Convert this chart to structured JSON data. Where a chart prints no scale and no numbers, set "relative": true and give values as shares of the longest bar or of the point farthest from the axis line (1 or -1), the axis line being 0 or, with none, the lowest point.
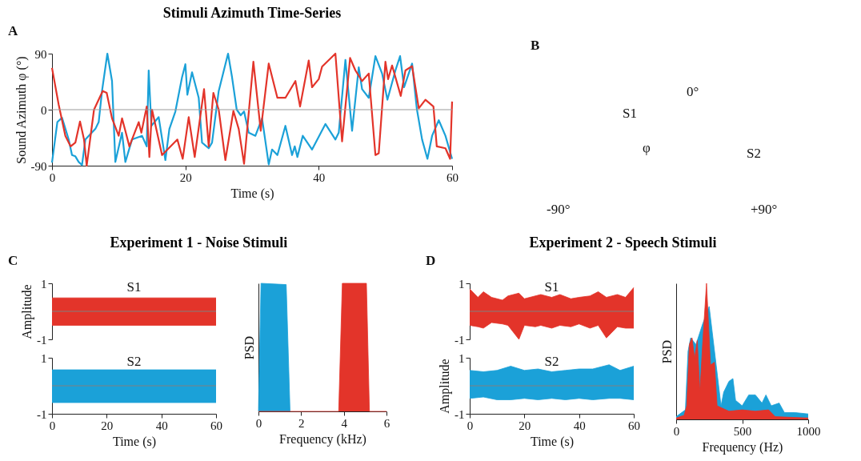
{
  "chart_data": [
    {
      "type": "line",
      "title": "Stimuli Azimuth Time-Series",
      "xlabel": "Time (s)",
      "ylabel": "Sound Azimuth φ (°)",
      "annotations": [
        "A"
      ],
      "xlim": [
        0,
        60
      ],
      "ylim": [
        -90,
        90
      ],
      "xticks": [
        0,
        20,
        40,
        60
      ],
      "yticks": [
        -90,
        0,
        90
      ],
      "ref_lines": [
        {
          "axis": "y",
          "value": 0,
          "color": "#999999"
        }
      ],
      "series": [
        {
          "color": "#1ba1d8",
          "x": [
            0,
            0.8,
            1.5,
            2.5,
            3,
            3.5,
            4,
            4.5,
            5,
            6.5,
            7,
            7.5,
            8.3,
            9,
            9.5,
            10.5,
            11,
            12,
            13.5,
            14.2,
            14.5,
            14.9,
            16,
            17,
            17.6,
            18.5,
            19.5,
            20,
            20.3,
            21,
            22,
            22.5,
            23.5,
            24,
            25,
            26.4,
            27,
            27.7,
            28.3,
            28.8,
            29.5,
            30.5,
            31.5,
            32.5,
            33,
            33.8,
            35,
            36,
            36.4,
            36.8,
            37.6,
            39,
            41,
            42.5,
            43,
            44,
            45,
            46,
            46.5,
            47.5,
            48.5,
            49.5,
            50.3,
            51.5,
            52.2,
            52.8,
            53.3,
            54,
            54.7,
            55.5,
            56.3,
            57,
            58,
            59,
            60
          ],
          "values": [
            -85,
            -20,
            -13,
            -48,
            -73,
            -75,
            -84,
            -89,
            -48,
            -31,
            -20,
            30,
            90,
            46,
            -84,
            -37,
            -84,
            -48,
            -42,
            -59,
            63,
            -26,
            -12,
            -81,
            -31,
            -3,
            52,
            73,
            24,
            60,
            19,
            -53,
            -62,
            -53,
            30,
            90,
            52,
            0,
            -9,
            -3,
            -37,
            -42,
            -14,
            -88,
            -64,
            -73,
            -26,
            -73,
            -59,
            -76,
            -42,
            -64,
            -23,
            -48,
            -37,
            80,
            -34,
            68,
            33,
            19,
            86,
            58,
            16,
            63,
            86,
            36,
            52,
            74,
            2,
            -48,
            -79,
            -42,
            -17,
            -42,
            -79
          ]
        },
        {
          "color": "#e3342a",
          "x": [
            0,
            1,
            2,
            2.8,
            3.5,
            4.2,
            4.8,
            5.2,
            6.3,
            7.6,
            8.2,
            9,
            10,
            10.5,
            11,
            11.6,
            13,
            13.4,
            14.2,
            14.6,
            15,
            16.5,
            18.8,
            19.6,
            20.5,
            21.4,
            22.8,
            23.5,
            24.2,
            25,
            26,
            27.2,
            28,
            28.8,
            30.2,
            31.3,
            32.5,
            33.8,
            35,
            36.5,
            37.2,
            38.5,
            39,
            40,
            40.5,
            42.5,
            43.5,
            44.7,
            45.5,
            46.5,
            47.5,
            48.5,
            49,
            50,
            50.4,
            51,
            52.3,
            53,
            54,
            55,
            56,
            57.2,
            57.7,
            59,
            59.7,
            60
          ],
          "values": [
            67,
            8,
            -42,
            -59,
            -53,
            -19,
            -48,
            -90,
            0,
            30,
            27,
            -14,
            -42,
            -14,
            -34,
            -59,
            -20,
            -37,
            5,
            -76,
            0,
            -73,
            -48,
            -79,
            -12,
            -76,
            33,
            -59,
            27,
            0,
            -81,
            -2,
            -31,
            -87,
            77,
            -34,
            74,
            19,
            19,
            46,
            5,
            79,
            36,
            49,
            69,
            90,
            -51,
            83,
            63,
            46,
            58,
            -73,
            -70,
            77,
            49,
            71,
            22,
            63,
            70,
            2,
            16,
            5,
            -59,
            -62,
            -79,
            13
          ]
        }
      ]
    },
    {
      "type": "other",
      "annotations": [
        "B",
        "S1",
        "S2",
        "φ",
        "0°",
        "-90°",
        "+90°"
      ]
    },
    {
      "type": "area",
      "title": "Experiment 1 - Noise Stimuli",
      "ylabel": "Amplitude",
      "annotations": [
        "C"
      ],
      "tick_labels": "y",
      "xlim": [
        0,
        60
      ],
      "ylim": [
        -1,
        1
      ],
      "xticks": [
        0,
        20,
        40,
        60
      ],
      "yticks": [
        -1,
        1
      ],
      "ref_lines": [
        {
          "axis": "y",
          "value": 0,
          "color": "#808080"
        }
      ],
      "series": [
        {
          "name": "S1",
          "color": "#e3342a",
          "x": [
            0,
            60
          ],
          "values": [
            0.48,
            0.48
          ]
        },
        {
          "color": "#e3342a",
          "x": [
            0,
            60
          ],
          "values": [
            -0.5,
            -0.5
          ]
        }
      ]
    },
    {
      "type": "area",
      "xlabel": "Time (s)",
      "xlim": [
        0,
        60
      ],
      "ylim": [
        -1,
        1
      ],
      "xticks": [
        0,
        20,
        40,
        60
      ],
      "yticks": [
        -1,
        1
      ],
      "ref_lines": [
        {
          "axis": "y",
          "value": 0,
          "color": "#808080"
        }
      ],
      "series": [
        {
          "name": "S2",
          "color": "#1ba1d8",
          "x": [
            0,
            60
          ],
          "values": [
            0.57,
            0.57
          ]
        },
        {
          "color": "#1ba1d8",
          "x": [
            0,
            60
          ],
          "values": [
            -0.6,
            -0.6
          ]
        }
      ]
    },
    {
      "type": "area",
      "relative": true,
      "xlabel": "Frequency (kHz)",
      "ylabel": "PSD",
      "xlim": [
        0,
        6
      ],
      "xticks": [
        0,
        2,
        4,
        6
      ],
      "series": [
        {
          "color": "#1ba1d8",
          "x": [
            0.0,
            0.12,
            1.3,
            1.48
          ],
          "values": [
            0,
            1,
            0.99,
            0
          ]
        },
        {
          "color": "#e3342a",
          "x": [
            0,
            3.76,
            3.93,
            5.06,
            5.2,
            6
          ],
          "values": [
            0,
            0,
            1,
            1,
            0,
            0
          ]
        }
      ]
    },
    {
      "type": "area",
      "title": "Experiment 2 - Speech Stimuli",
      "annotations": [
        "D"
      ],
      "tick_labels": "y",
      "xlim": [
        0,
        60
      ],
      "ylim": [
        -1,
        1
      ],
      "xticks": [
        0,
        20,
        40,
        60
      ],
      "yticks": [
        -1,
        1
      ],
      "ref_lines": [
        {
          "axis": "y",
          "value": 0,
          "color": "#808080"
        }
      ],
      "series": [
        {
          "name": "S1",
          "color": "#e3342a",
          "x": [
            0,
            3,
            5,
            8,
            12,
            14,
            18,
            20,
            24,
            26,
            30,
            33,
            37,
            40,
            44,
            47,
            50,
            54,
            57,
            60
          ],
          "values": [
            0.8,
            0.5,
            0.7,
            0.5,
            0.4,
            0.55,
            0.65,
            0.45,
            0.55,
            0.6,
            0.5,
            0.6,
            0.45,
            0.5,
            0.55,
            0.7,
            0.5,
            0.6,
            0.5,
            0.85
          ]
        },
        {
          "color": "#e3342a",
          "x": [
            0,
            3,
            5,
            8,
            12,
            14,
            18,
            20,
            24,
            26,
            30,
            33,
            37,
            40,
            44,
            47,
            50,
            54,
            57,
            60
          ],
          "values": [
            -0.5,
            -0.55,
            -0.6,
            -0.4,
            -0.45,
            -0.5,
            -1,
            -0.5,
            -0.55,
            -0.5,
            -0.6,
            -0.5,
            -0.55,
            -0.45,
            -0.6,
            -0.5,
            -0.95,
            -0.55,
            -0.6,
            -0.6
          ]
        }
      ]
    },
    {
      "type": "area",
      "ylabel": "Amplitude",
      "xlabel": "Time (s)",
      "xlim": [
        0,
        60
      ],
      "ylim": [
        -1,
        1
      ],
      "xticks": [
        0,
        20,
        40,
        60
      ],
      "yticks": [
        -1,
        1
      ],
      "ref_lines": [
        {
          "axis": "y",
          "value": 0,
          "color": "#808080"
        }
      ],
      "series": [
        {
          "name": "S2",
          "color": "#1ba1d8",
          "x": [
            0,
            5,
            10,
            15,
            20,
            25,
            30,
            35,
            40,
            45,
            51,
            55,
            60
          ],
          "values": [
            0.55,
            0.5,
            0.55,
            0.7,
            0.55,
            0.6,
            0.5,
            0.55,
            0.6,
            0.6,
            0.75,
            0.55,
            0.7
          ]
        },
        {
          "color": "#1ba1d8",
          "x": [
            0,
            5,
            10,
            15,
            20,
            25,
            30,
            35,
            40,
            45,
            51,
            55,
            60
          ],
          "values": [
            -0.45,
            -0.4,
            -0.5,
            -0.5,
            -0.45,
            -0.5,
            -0.45,
            -0.5,
            -0.45,
            -0.5,
            -0.45,
            -0.45,
            -0.5
          ]
        }
      ]
    },
    {
      "type": "area",
      "relative": true,
      "xlabel": "Frequency (Hz)",
      "ylabel": "PSD",
      "xlim": [
        0,
        1000
      ],
      "xticks": [
        0,
        500,
        1000
      ],
      "series": [
        {
          "color": "#1ba1d8",
          "x": [
            0,
            70,
            90,
            110,
            150,
            200,
            250,
            340,
            360,
            400,
            430,
            450,
            500,
            550,
            600,
            650,
            680,
            720,
            780,
            820,
            900,
            1000
          ],
          "values": [
            0.02,
            0.07,
            0.5,
            0.6,
            0.55,
            0.7,
            0.83,
            0.1,
            0.2,
            0.28,
            0.3,
            0.14,
            0.1,
            0.18,
            0.18,
            0.12,
            0.18,
            0.1,
            0.12,
            0.05,
            0.05,
            0.04
          ]
        },
        {
          "color": "#e3342a",
          "x": [
            0,
            30,
            60,
            80,
            100,
            120,
            140,
            160,
            180,
            200,
            230,
            260,
            290,
            310,
            400,
            500,
            600,
            700,
            750,
            1000
          ],
          "values": [
            0.01,
            0.02,
            0.03,
            0.1,
            0.55,
            0.6,
            0.45,
            0.58,
            0.2,
            0.55,
            1.0,
            0.4,
            0.42,
            0.1,
            0.06,
            0.07,
            0.06,
            0.07,
            0.02,
            0.01
          ]
        }
      ]
    }
  ]
}
